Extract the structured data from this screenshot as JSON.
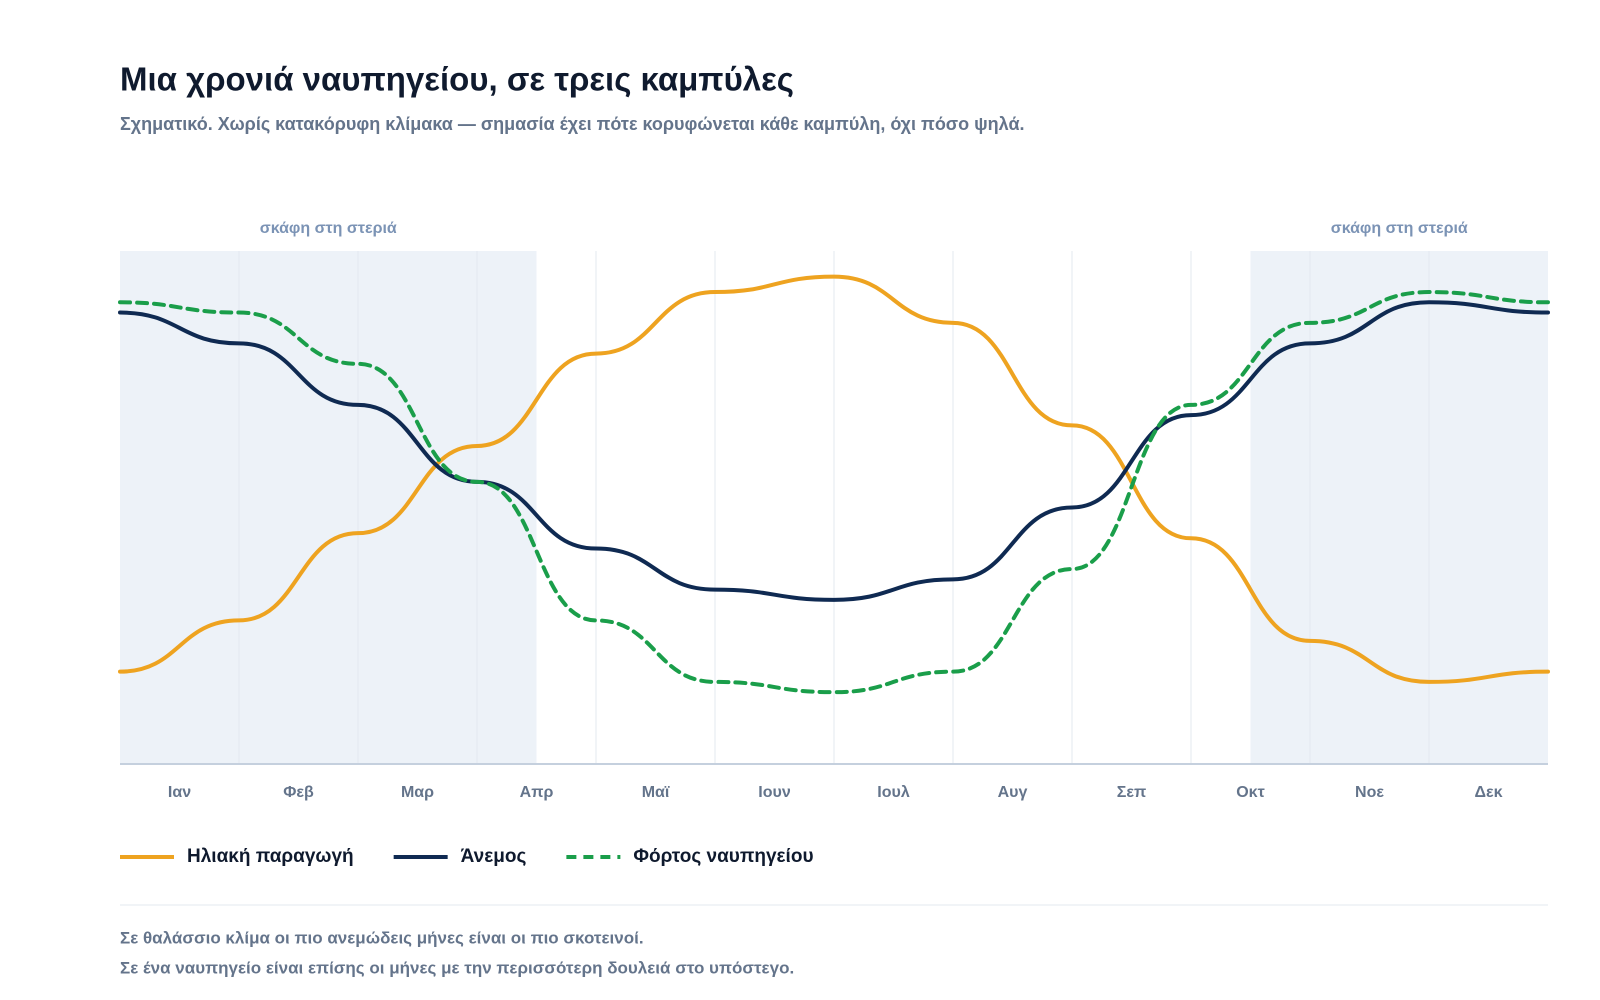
{
  "chart_data": {
    "type": "line",
    "title": "Μια χρονιά ναυπηγείου, σε τρεις καμπύλες",
    "subtitle": "Σχηματικό. Χωρίς κατακόρυφη κλίμακα — σημασία έχει πότε κορυφώνεται κάθε καμπύλη, όχι πόσο ψηλά.",
    "categories": [
      "Ιαν",
      "Φεβ",
      "Μαρ",
      "Απρ",
      "Μαϊ",
      "Ιουν",
      "Ιουλ",
      "Αυγ",
      "Σεπ",
      "Οκτ",
      "Νοε",
      "Δεκ"
    ],
    "x": [
      0,
      1,
      2,
      3,
      4,
      5,
      6,
      7,
      8,
      9,
      10,
      11,
      12
    ],
    "xlim": [
      0,
      12
    ],
    "ylim": [
      0,
      100
    ],
    "bands": [
      {
        "from": 0,
        "to": 3.5,
        "label": "σκάφη στη στεριά"
      },
      {
        "from": 9.5,
        "to": 12,
        "label": "σκάφη στη στεριά"
      }
    ],
    "series": [
      {
        "name": "Ηλιακή παραγωγή",
        "color": "#eea320",
        "dashed": false,
        "values": [
          18,
          28,
          45,
          62,
          80,
          92,
          95,
          86,
          66,
          44,
          24,
          16,
          18
        ]
      },
      {
        "name": "Άνεμος",
        "color": "#0f2a52",
        "dashed": false,
        "values": [
          88,
          82,
          70,
          55,
          42,
          34,
          32,
          36,
          50,
          68,
          82,
          90,
          88
        ]
      },
      {
        "name": "Φόρτος ναυπηγείου",
        "color": "#1a9e4a",
        "dashed": true,
        "values": [
          90,
          88,
          78,
          55,
          28,
          16,
          14,
          18,
          38,
          70,
          86,
          92,
          90
        ]
      }
    ],
    "notes": [
      "Σε θαλάσσιο κλίμα οι πιο ανεμώδεις μήνες είναι οι πιο σκοτεινοί.",
      "Σε ένα ναυπηγείο είναι επίσης οι μήνες με την περισσότερη δουλειά στο υπόστεγο."
    ]
  }
}
